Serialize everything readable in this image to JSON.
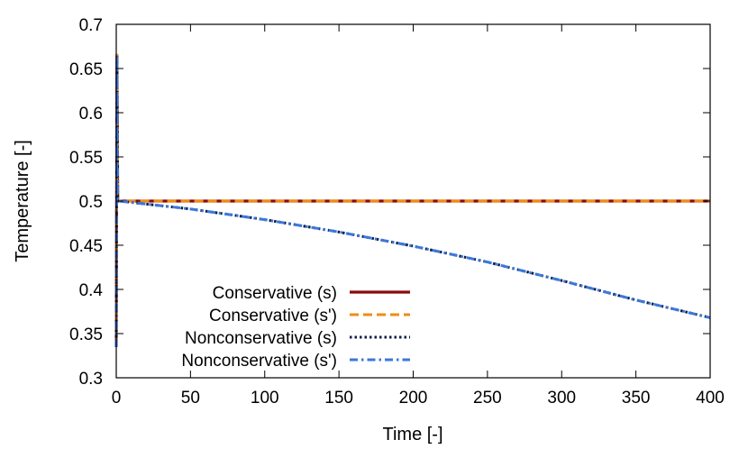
{
  "chart_data": {
    "type": "line",
    "title": "",
    "xlabel": "Time [-]",
    "ylabel": "Temperature [-]",
    "xlim": [
      0,
      400
    ],
    "ylim": [
      0.3,
      0.7
    ],
    "xticks": [
      0,
      50,
      100,
      150,
      200,
      250,
      300,
      350,
      400
    ],
    "yticks": [
      0.3,
      0.35,
      0.4,
      0.45,
      0.5,
      0.55,
      0.6,
      0.65,
      0.7
    ],
    "ytick_labels": [
      "0.3",
      "0.35",
      "0.4",
      "0.45",
      "0.5",
      "0.55",
      "0.6",
      "0.65",
      "0.7"
    ],
    "grid": false,
    "legend_position": "bottom-left",
    "series": [
      {
        "name": "Conservative (s)",
        "color": "#8b0a0a",
        "style": "solid",
        "x": [
          0,
          0.5,
          1,
          2,
          5,
          400
        ],
        "y": [
          0.335,
          0.665,
          0.5,
          0.5,
          0.5,
          0.5
        ]
      },
      {
        "name": "Conservative (s')",
        "color": "#f08c14",
        "style": "dashed",
        "x": [
          0,
          0.5,
          1,
          2,
          5,
          400
        ],
        "y": [
          0.335,
          0.665,
          0.5,
          0.5,
          0.5,
          0.5
        ]
      },
      {
        "name": "Nonconservative (s)",
        "color": "#0d1e46",
        "style": "dotted",
        "x": [
          0,
          0.5,
          1,
          2,
          50,
          100,
          150,
          200,
          250,
          300,
          350,
          400
        ],
        "y": [
          0.335,
          0.665,
          0.5,
          0.5,
          0.491,
          0.479,
          0.465,
          0.449,
          0.431,
          0.41,
          0.388,
          0.368
        ]
      },
      {
        "name": "Nonconservative (s')",
        "color": "#3c78dc",
        "style": "dashdot",
        "x": [
          0,
          0.5,
          1,
          2,
          50,
          100,
          150,
          200,
          250,
          300,
          350,
          400
        ],
        "y": [
          0.335,
          0.665,
          0.5,
          0.5,
          0.491,
          0.479,
          0.465,
          0.449,
          0.431,
          0.41,
          0.388,
          0.368
        ]
      }
    ]
  }
}
